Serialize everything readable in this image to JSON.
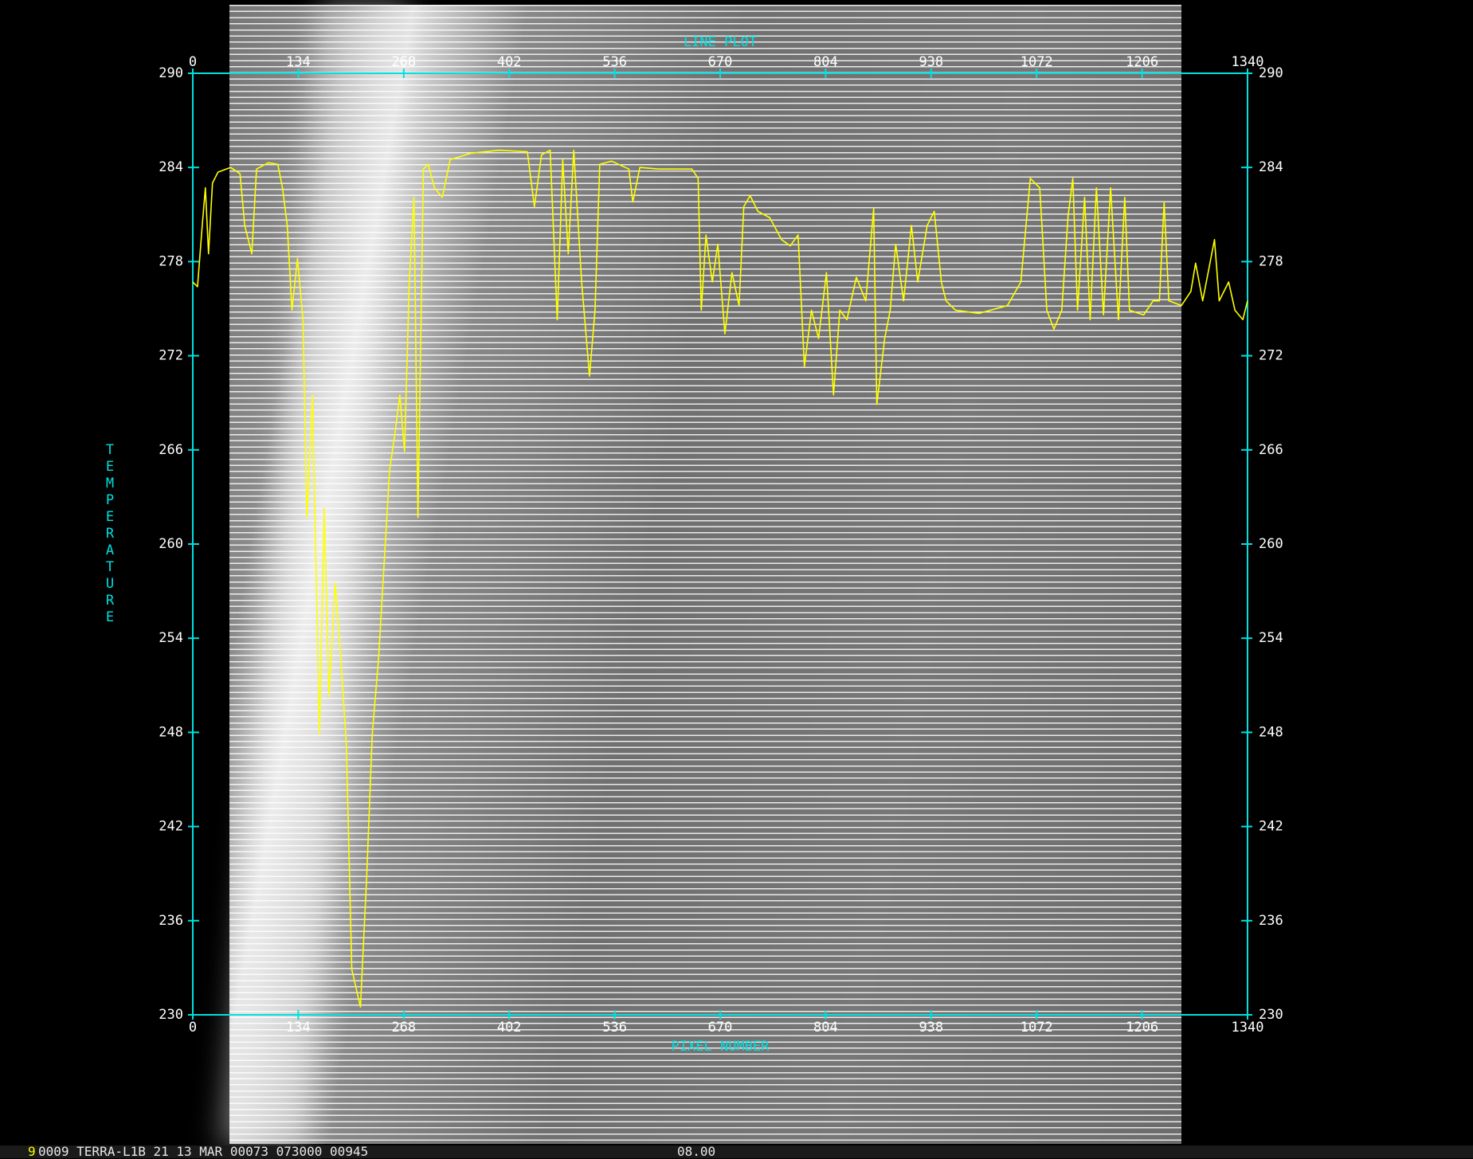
{
  "chart_data": {
    "type": "line",
    "title": "LINE PLOT",
    "xlabel": "PIXEL NUMBER",
    "ylabel": "TEMPERATURE",
    "xlim": [
      0,
      1340
    ],
    "ylim": [
      230,
      290
    ],
    "xticks": [
      0,
      134,
      268,
      402,
      536,
      670,
      804,
      938,
      1072,
      1206,
      1340
    ],
    "yticks": [
      230,
      236,
      242,
      248,
      254,
      260,
      266,
      272,
      278,
      284,
      290
    ],
    "axis_color": "#00e0e0",
    "series": [
      {
        "color": "#ffff00",
        "x": [
          0,
          6,
          12,
          16,
          20,
          25,
          32,
          48,
          60,
          66,
          75,
          81,
          96,
          108,
          114,
          120,
          126,
          133,
          140,
          145,
          152,
          161,
          167,
          173,
          181,
          188,
          195,
          202,
          213,
          221,
          228,
          236,
          243,
          250,
          257,
          263,
          269,
          275,
          281,
          286,
          293,
          299,
          307,
          317,
          327,
          353,
          389,
          425,
          434,
          443,
          454,
          463,
          470,
          477,
          484,
          494,
          504,
          511,
          517,
          532,
          554,
          559,
          568,
          592,
          634,
          642,
          646,
          652,
          660,
          667,
          676,
          685,
          694,
          700,
          708,
          718,
          733,
          748,
          759,
          769,
          777,
          786,
          795,
          805,
          814,
          822,
          831,
          843,
          855,
          865,
          869,
          879,
          886,
          893,
          903,
          913,
          921,
          933,
          942,
          951,
          957,
          969,
          999,
          1035,
          1052,
          1064,
          1076,
          1085,
          1094,
          1104,
          1112,
          1118,
          1124,
          1133,
          1140,
          1148,
          1157,
          1166,
          1176,
          1184,
          1190,
          1208,
          1220,
          1228,
          1234,
          1240,
          1256,
          1268,
          1274,
          1283,
          1298,
          1304,
          1316,
          1324,
          1334,
          1340
        ],
        "values": [
          276.7,
          276.4,
          280.3,
          282.7,
          278.5,
          283.0,
          283.7,
          284.0,
          283.6,
          280.3,
          278.5,
          283.9,
          284.3,
          284.2,
          282.7,
          280.3,
          274.9,
          278.2,
          274.3,
          261.7,
          269.5,
          247.9,
          262.3,
          250.3,
          257.5,
          252.7,
          247.3,
          232.9,
          230.5,
          238.9,
          247.9,
          252.7,
          258.7,
          264.7,
          267.1,
          269.5,
          265.9,
          276.7,
          282.1,
          261.7,
          283.9,
          284.2,
          282.7,
          282.1,
          284.5,
          284.9,
          285.1,
          285.0,
          281.5,
          284.8,
          285.1,
          274.3,
          284.5,
          278.5,
          285.1,
          276.7,
          270.7,
          274.9,
          284.2,
          284.4,
          283.9,
          281.8,
          284.0,
          283.9,
          283.9,
          283.3,
          274.9,
          279.7,
          276.7,
          279.1,
          273.4,
          277.3,
          275.2,
          281.5,
          282.2,
          281.2,
          280.8,
          279.4,
          279.0,
          279.7,
          271.3,
          274.9,
          273.1,
          277.3,
          269.5,
          274.9,
          274.3,
          277.0,
          275.5,
          281.4,
          268.9,
          273.1,
          274.9,
          279.1,
          275.5,
          280.3,
          276.7,
          280.3,
          281.2,
          276.7,
          275.5,
          274.9,
          274.7,
          275.2,
          276.7,
          283.3,
          282.7,
          274.9,
          273.7,
          274.9,
          280.9,
          283.3,
          274.9,
          282.1,
          274.3,
          282.7,
          274.6,
          282.7,
          274.3,
          282.1,
          274.9,
          274.6,
          275.5,
          275.5,
          281.8,
          275.5,
          275.2,
          276.1,
          277.9,
          275.5,
          279.4,
          275.5,
          276.7,
          274.9,
          274.3,
          275.5
        ]
      }
    ]
  },
  "status": {
    "frame": "9",
    "info": "0009 TERRA-L1B 21 13 MAR 00073 073000 00945",
    "value": "08.00"
  }
}
